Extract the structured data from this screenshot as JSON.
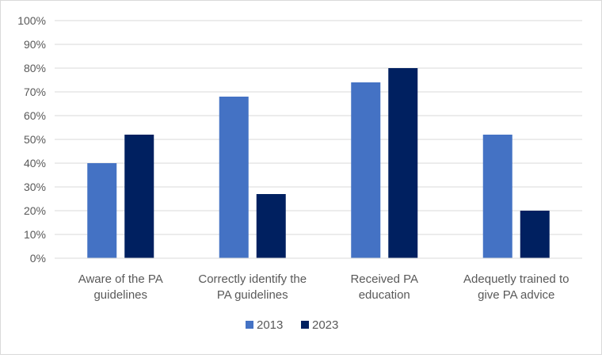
{
  "chart_data": {
    "type": "bar",
    "categories": [
      [
        "Aware of the PA",
        "guidelines"
      ],
      [
        "Correctly identify the",
        "PA guidelines"
      ],
      [
        "Received PA",
        "education"
      ],
      [
        "Adequetly trained to",
        "give PA advice"
      ]
    ],
    "series": [
      {
        "name": "2013",
        "color": "#4472c4",
        "values": [
          40,
          68,
          74,
          52
        ]
      },
      {
        "name": "2023",
        "color": "#002060",
        "values": [
          52,
          27,
          80,
          20
        ]
      }
    ],
    "y_ticks": [
      "0%",
      "10%",
      "20%",
      "30%",
      "40%",
      "50%",
      "60%",
      "70%",
      "80%",
      "90%",
      "100%"
    ],
    "ylim": [
      0,
      100
    ],
    "grid": true,
    "legend_position": "bottom-center",
    "gridline_color": "#d9d9d9"
  }
}
